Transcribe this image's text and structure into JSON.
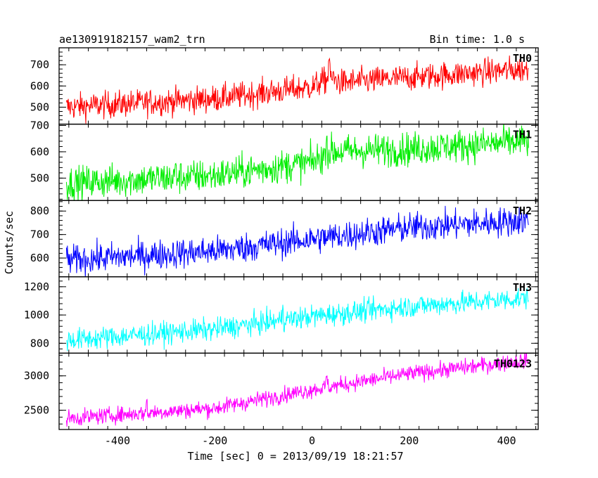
{
  "header": {
    "left_title": "ae130919182157_wam2_trn",
    "right_title": "Bin time: 1.0 s"
  },
  "chart_data": {
    "type": "line",
    "xlabel": "Time [sec] 0 = 2013/09/19 18:21:57",
    "ylabel": "Counts/sec",
    "xlim": [
      -520,
      465
    ],
    "x_ticks": [
      -400,
      -200,
      0,
      200,
      400
    ],
    "x_range_data": [
      -505,
      445
    ],
    "bin_time_s": 1.0,
    "grid": false,
    "panels": [
      {
        "name": "TH0",
        "color": "#ff0000",
        "ylim": [
          420,
          780
        ],
        "y_ticks": [
          500,
          600,
          700
        ],
        "trend": [
          [
            -505,
            500
          ],
          [
            -200,
            540
          ],
          [
            0,
            595
          ],
          [
            20,
            620
          ],
          [
            40,
            640
          ],
          [
            60,
            615
          ],
          [
            200,
            640
          ],
          [
            445,
            680
          ]
        ],
        "noise": 32,
        "features": [
          [
            35,
            730
          ]
        ]
      },
      {
        "name": "TH1",
        "color": "#00ee00",
        "ylim": [
          415,
          705
        ],
        "y_ticks": [
          500,
          600,
          700
        ],
        "trend": [
          [
            -505,
            480
          ],
          [
            -200,
            510
          ],
          [
            0,
            560
          ],
          [
            40,
            600
          ],
          [
            200,
            610
          ],
          [
            445,
            640
          ]
        ],
        "noise": 32,
        "features": [
          [
            -280,
            560
          ],
          [
            30,
            660
          ]
        ]
      },
      {
        "name": "TH2",
        "color": "#0000ff",
        "ylim": [
          520,
          845
        ],
        "y_ticks": [
          600,
          700,
          800
        ],
        "trend": [
          [
            -505,
            590
          ],
          [
            -200,
            630
          ],
          [
            0,
            680
          ],
          [
            200,
            730
          ],
          [
            445,
            760
          ]
        ],
        "noise": 32,
        "features": []
      },
      {
        "name": "TH3",
        "color": "#00ffff",
        "ylim": [
          730,
          1270
        ],
        "y_ticks": [
          800,
          1000,
          1200
        ],
        "trend": [
          [
            -505,
            820
          ],
          [
            -200,
            900
          ],
          [
            0,
            990
          ],
          [
            200,
            1060
          ],
          [
            445,
            1120
          ]
        ],
        "noise": 40,
        "features": [
          [
            -60,
            1050
          ]
        ]
      },
      {
        "name": "TH0123",
        "color": "#ff00ff",
        "ylim": [
          2220,
          3330
        ],
        "y_ticks": [
          2500,
          3000
        ],
        "trend": [
          [
            -505,
            2380
          ],
          [
            -200,
            2530
          ],
          [
            0,
            2800
          ],
          [
            200,
            3030
          ],
          [
            445,
            3230
          ]
        ],
        "noise": 60,
        "features": [
          [
            30,
            3000
          ],
          [
            -340,
            2640
          ]
        ]
      }
    ]
  }
}
